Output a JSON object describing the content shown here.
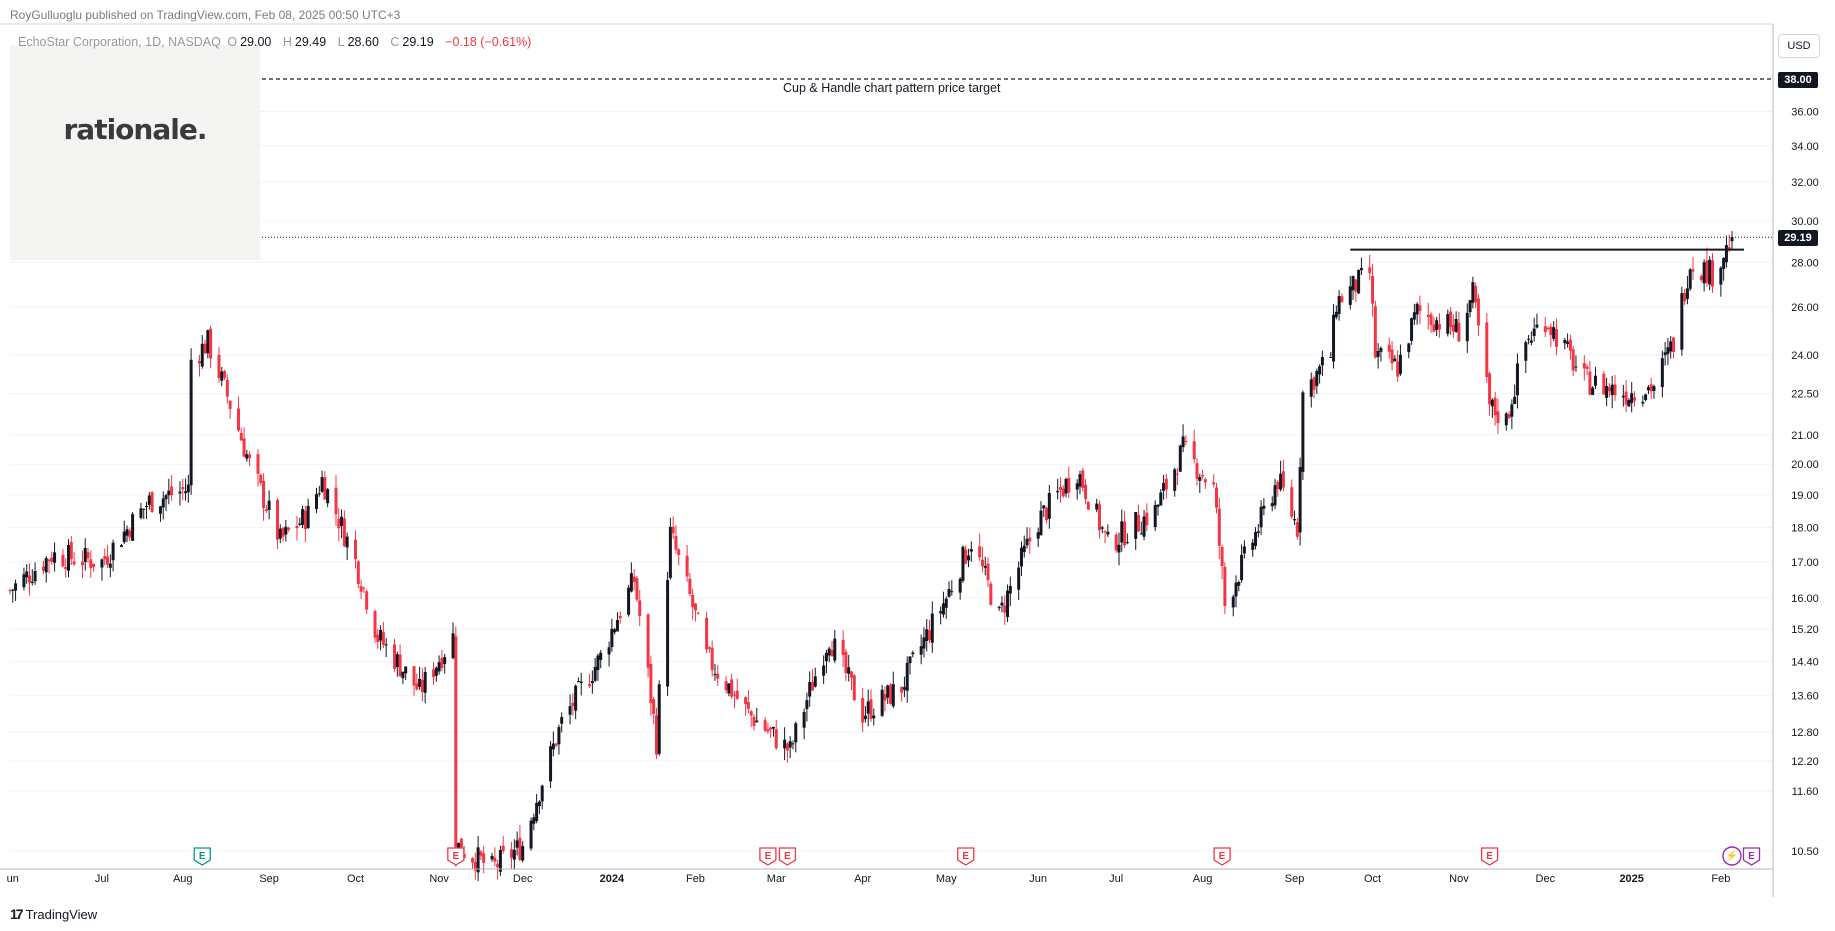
{
  "header": {
    "published": "RoyGulluoglu published on TradingView.com, Feb 08, 2025 00:50 UTC+3"
  },
  "legend": {
    "symbol": "EchoStar Corporation, 1D, NASDAQ",
    "open_label": "O",
    "open": "29.00",
    "high_label": "H",
    "high": "29.49",
    "low_label": "L",
    "low": "28.60",
    "close_label": "C",
    "close": "29.19",
    "change": "−0.18 (−0.61%)"
  },
  "logo": {
    "text": "rationale."
  },
  "annotation": {
    "text": "Cup & Handle chart pattern price target"
  },
  "price_axis": {
    "currency": "USD",
    "target_badge": "38.00",
    "last_badge": "29.19"
  },
  "footer": {
    "brand": "TradingView"
  },
  "colors": {
    "up": "#131722",
    "down": "#f23645",
    "earnings": "#f23645",
    "dividend": "#089981",
    "grid": "#f0f3fa",
    "axis_text": "#131722",
    "flash_event": "#9c27b0"
  },
  "chart_data": {
    "type": "candlestick",
    "title": "EchoStar Corporation, 1D, NASDAQ",
    "y_scale": "log",
    "ylim": [
      10.0,
      40.0
    ],
    "price_ticks": [
      10.5,
      11.6,
      12.2,
      12.8,
      13.6,
      14.4,
      15.2,
      16.0,
      17.0,
      18.0,
      19.0,
      20.0,
      21.0,
      22.5,
      24.0,
      26.0,
      28.0,
      30.0,
      32.0,
      34.0,
      36.0
    ],
    "time_ticks": [
      {
        "label": "un",
        "date": "2023-06-01"
      },
      {
        "label": "Jul",
        "date": "2023-07-03"
      },
      {
        "label": "Aug",
        "date": "2023-08-01"
      },
      {
        "label": "Sep",
        "date": "2023-09-01"
      },
      {
        "label": "Oct",
        "date": "2023-10-02"
      },
      {
        "label": "Nov",
        "date": "2023-11-01"
      },
      {
        "label": "Dec",
        "date": "2023-12-01"
      },
      {
        "label": "2024",
        "date": "2024-01-02"
      },
      {
        "label": "Feb",
        "date": "2024-02-01"
      },
      {
        "label": "Mar",
        "date": "2024-03-01"
      },
      {
        "label": "Apr",
        "date": "2024-04-01"
      },
      {
        "label": "May",
        "date": "2024-05-01"
      },
      {
        "label": "Jun",
        "date": "2024-06-03"
      },
      {
        "label": "Jul",
        "date": "2024-07-01"
      },
      {
        "label": "Aug",
        "date": "2024-08-01"
      },
      {
        "label": "Sep",
        "date": "2024-09-03"
      },
      {
        "label": "Oct",
        "date": "2024-10-01"
      },
      {
        "label": "Nov",
        "date": "2024-11-01"
      },
      {
        "label": "Dec",
        "date": "2024-12-02"
      },
      {
        "label": "2025",
        "date": "2025-01-02"
      },
      {
        "label": "Feb",
        "date": "2025-02-03"
      }
    ],
    "start_date": "2023-05-31",
    "end_date": "2025-02-07",
    "last_date": "2025-02-07",
    "price_path": [
      [
        "2023-05-31",
        16.2
      ],
      [
        "2023-06-15",
        17.2
      ],
      [
        "2023-07-03",
        17.0
      ],
      [
        "2023-07-20",
        18.8
      ],
      [
        "2023-08-03",
        19.2
      ],
      [
        "2023-08-04",
        23.8
      ],
      [
        "2023-08-10",
        24.5
      ],
      [
        "2023-08-25",
        20.0
      ],
      [
        "2023-09-05",
        17.6
      ],
      [
        "2023-09-15",
        18.4
      ],
      [
        "2023-09-20",
        19.5
      ],
      [
        "2023-10-02",
        17.0
      ],
      [
        "2023-10-10",
        15.0
      ],
      [
        "2023-10-25",
        13.7
      ],
      [
        "2023-11-06",
        15.0
      ],
      [
        "2023-11-07",
        10.6
      ],
      [
        "2023-11-20",
        10.2
      ],
      [
        "2023-12-01",
        10.6
      ],
      [
        "2023-12-15",
        13.0
      ],
      [
        "2023-12-29",
        14.5
      ],
      [
        "2024-01-10",
        16.5
      ],
      [
        "2024-01-18",
        12.6
      ],
      [
        "2024-01-23",
        17.8
      ],
      [
        "2024-02-05",
        14.5
      ],
      [
        "2024-02-20",
        13.2
      ],
      [
        "2024-03-06",
        12.4
      ],
      [
        "2024-03-20",
        15.0
      ],
      [
        "2024-04-01",
        13.2
      ],
      [
        "2024-04-15",
        13.8
      ],
      [
        "2024-05-01",
        16.0
      ],
      [
        "2024-05-10",
        17.6
      ],
      [
        "2024-05-20",
        15.5
      ],
      [
        "2024-06-03",
        18.2
      ],
      [
        "2024-06-17",
        19.8
      ],
      [
        "2024-06-28",
        17.5
      ],
      [
        "2024-07-15",
        18.5
      ],
      [
        "2024-07-25",
        20.5
      ],
      [
        "2024-08-05",
        19.2
      ],
      [
        "2024-08-09",
        15.8
      ],
      [
        "2024-08-20",
        17.8
      ],
      [
        "2024-08-28",
        19.5
      ],
      [
        "2024-09-04",
        18.0
      ],
      [
        "2024-09-06",
        22.5
      ],
      [
        "2024-09-16",
        24.0
      ],
      [
        "2024-09-18",
        26.2
      ],
      [
        "2024-09-30",
        27.5
      ],
      [
        "2024-10-02",
        24.0
      ],
      [
        "2024-10-10",
        23.5
      ],
      [
        "2024-10-17",
        25.8
      ],
      [
        "2024-11-01",
        25.0
      ],
      [
        "2024-11-06",
        26.5
      ],
      [
        "2024-11-12",
        22.0
      ],
      [
        "2024-11-18",
        21.5
      ],
      [
        "2024-11-25",
        24.5
      ],
      [
        "2024-12-02",
        25.5
      ],
      [
        "2024-12-16",
        23.0
      ],
      [
        "2024-12-31",
        22.5
      ],
      [
        "2025-01-10",
        22.8
      ],
      [
        "2025-01-17",
        24.5
      ],
      [
        "2025-01-23",
        28.0
      ],
      [
        "2025-01-31",
        27.5
      ],
      [
        "2025-02-05",
        28.6
      ],
      [
        "2025-02-07",
        29.19
      ]
    ],
    "last_candle": {
      "open": 29.0,
      "high": 29.49,
      "low": 28.6,
      "close": 29.19
    },
    "lines": [
      {
        "kind": "dashed-horizontal",
        "price": 38.0,
        "label": "Cup & Handle chart pattern price target"
      },
      {
        "kind": "solid-horizontal",
        "price": 28.6,
        "from": "2024-09-23",
        "to": "2025-02-07"
      },
      {
        "kind": "dotted-last-price",
        "price": 29.19
      }
    ],
    "event_markers": [
      {
        "type": "dividend",
        "date": "2023-08-08",
        "glyph": "E"
      },
      {
        "type": "earnings",
        "date": "2023-11-07",
        "glyph": "E"
      },
      {
        "type": "earnings",
        "date": "2024-02-27",
        "glyph": "E"
      },
      {
        "type": "earnings",
        "date": "2024-03-05",
        "glyph": "E"
      },
      {
        "type": "earnings",
        "date": "2024-05-08",
        "glyph": "E"
      },
      {
        "type": "earnings",
        "date": "2024-08-08",
        "glyph": "E"
      },
      {
        "type": "earnings",
        "date": "2024-11-12",
        "glyph": "E"
      },
      {
        "type": "flash",
        "date": "2025-02-07",
        "glyph": "⚡"
      },
      {
        "type": "earnings-upcoming",
        "date": "2025-02-14",
        "glyph": "E"
      }
    ],
    "grid": true,
    "legend": "top-left"
  }
}
